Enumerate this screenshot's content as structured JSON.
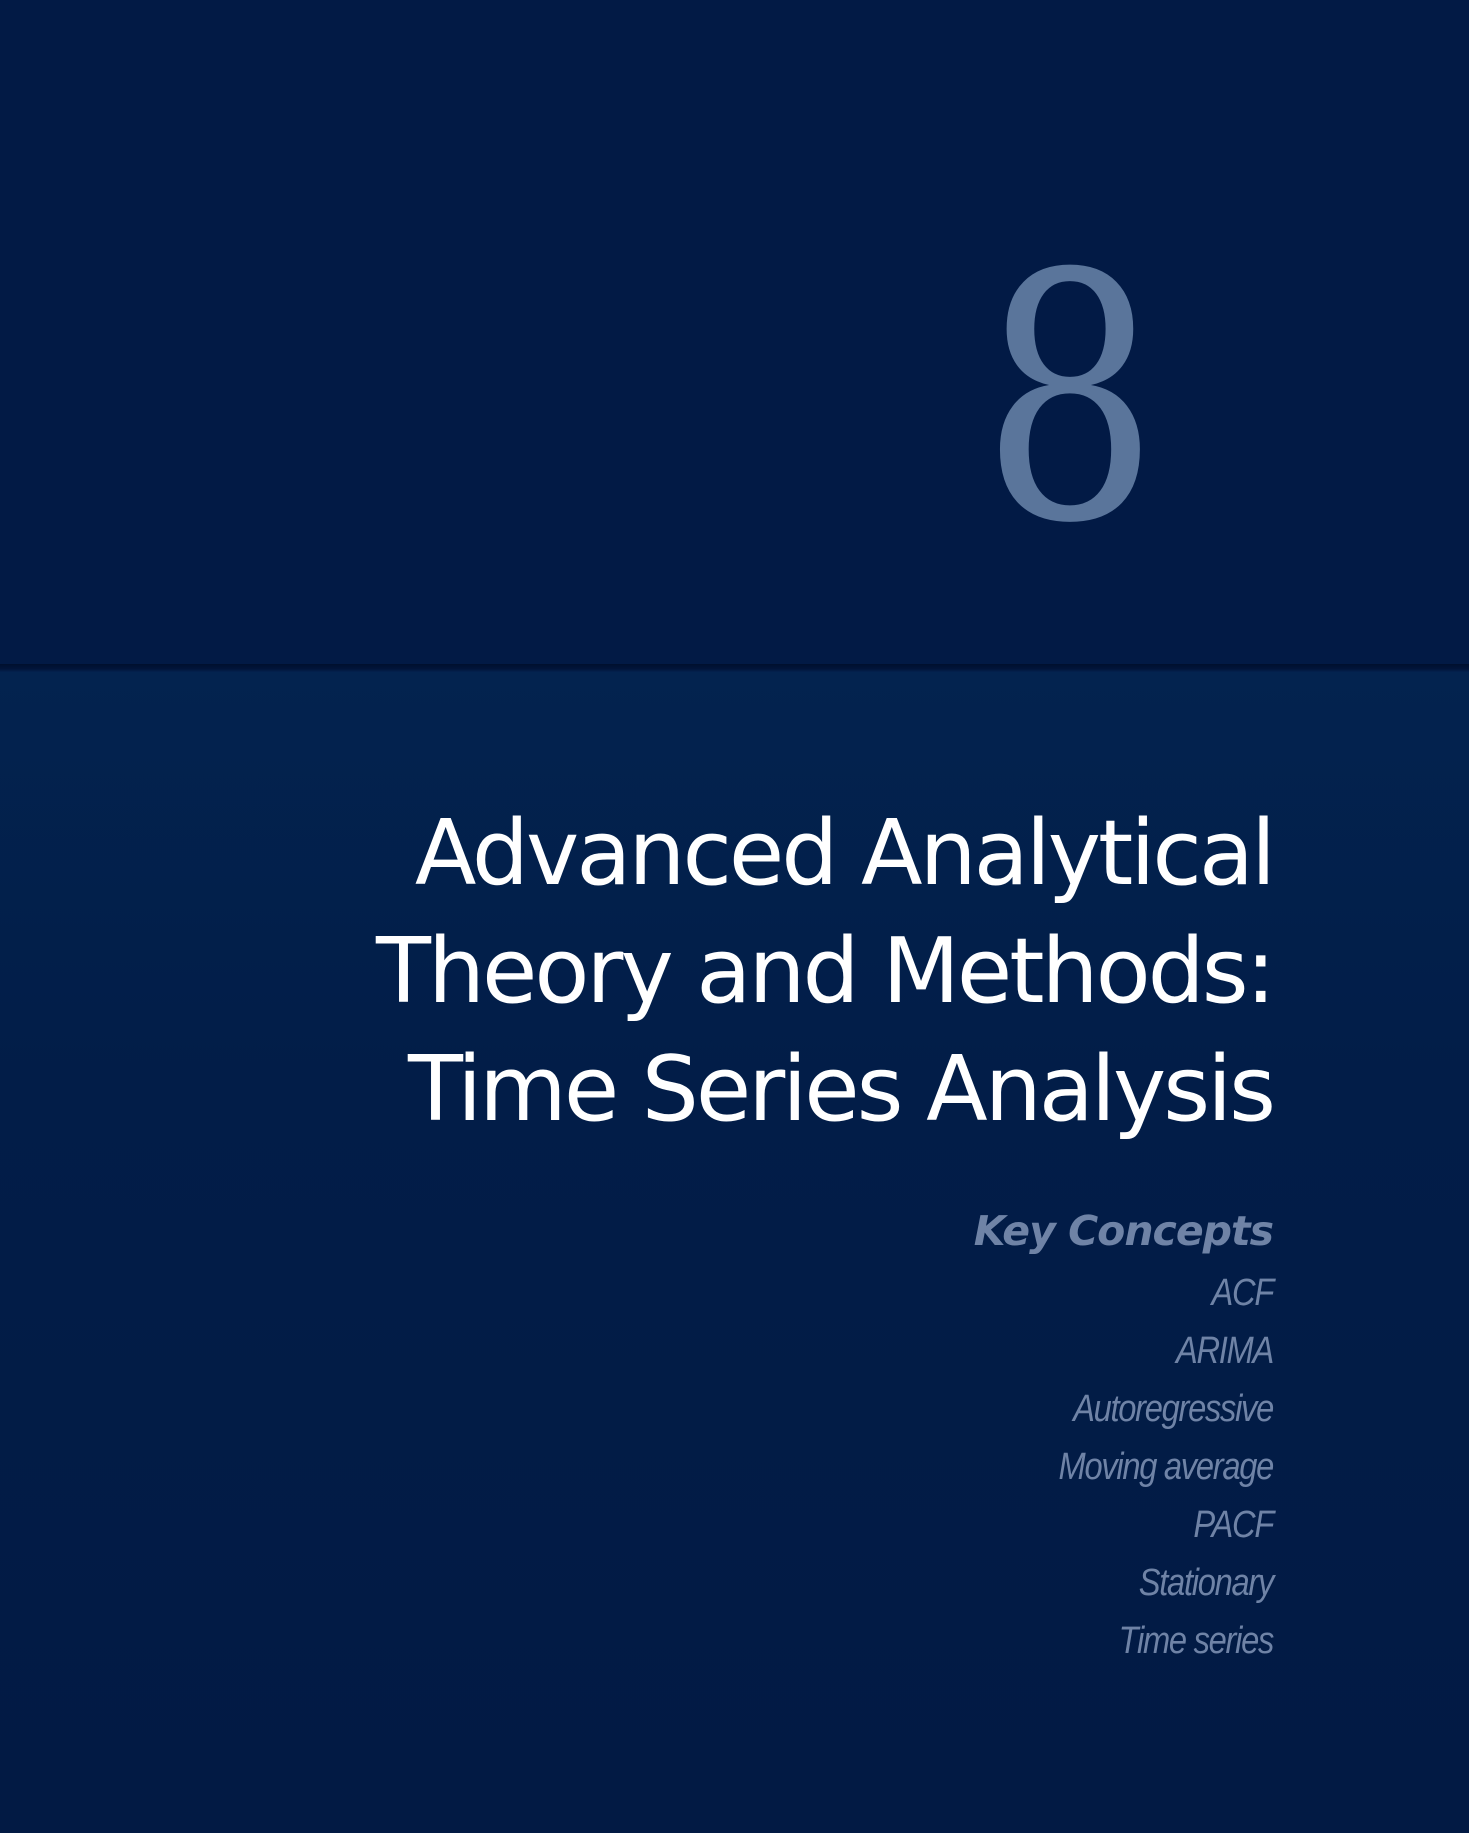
{
  "chapter": {
    "number": "8"
  },
  "title": {
    "lines": [
      "Advanced Analytical",
      "Theory and Methods:",
      "Time Series Analysis"
    ]
  },
  "key_concepts": {
    "heading": "Key Concepts",
    "items": [
      "ACF",
      "ARIMA",
      "Autoregressive",
      "Moving average",
      "PACF",
      "Stationary",
      "Time series"
    ]
  },
  "colors": {
    "background": "#021a44",
    "chapter_number": "#5a759b",
    "title_text": "#ffffff",
    "concepts_text": "#6f83a6"
  }
}
